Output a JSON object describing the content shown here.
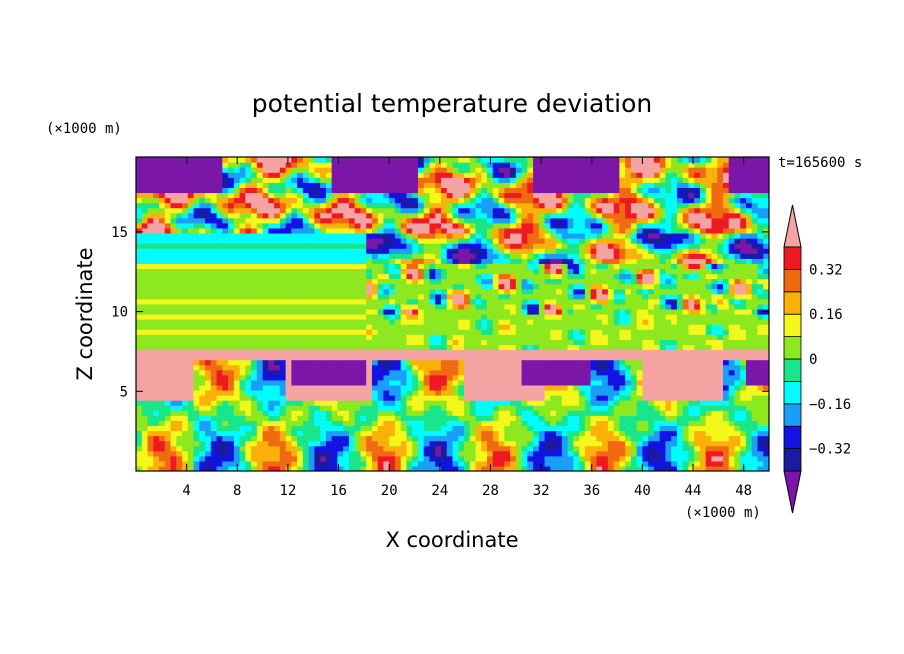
{
  "chart_data": {
    "type": "heatmap",
    "title": "potential temperature deviation",
    "time_label": "t=165600 s",
    "xlabel": "X coordinate",
    "ylabel": "Z coordinate",
    "x_unit": "(×1000 m)",
    "y_unit": "(×1000 m)",
    "xlim": [
      0,
      50
    ],
    "ylim": [
      0,
      19.7
    ],
    "x_ticks": [
      4,
      8,
      12,
      16,
      20,
      24,
      28,
      32,
      36,
      40,
      44,
      48
    ],
    "y_ticks": [
      5,
      10,
      15
    ],
    "colorbar": {
      "tick_labels": [
        "0.32",
        "0.16",
        "0",
        "−0.16",
        "−0.32"
      ],
      "levels": [
        -0.4,
        -0.32,
        -0.24,
        -0.16,
        -0.08,
        0,
        0.08,
        0.16,
        0.24,
        0.32,
        0.4
      ],
      "colors": [
        "#7b17a8",
        "#1b1b9f",
        "#1212e3",
        "#1a9ef8",
        "#00fcff",
        "#19e58a",
        "#8ee81f",
        "#f4f71c",
        "#fbb00a",
        "#f06a11",
        "#ef1922",
        "#f5a3a3"
      ],
      "extend": "both"
    },
    "field_bands": [
      {
        "z_range": [
          0,
          7
        ],
        "description_value": "mixed -0.4 to 0.4"
      },
      {
        "z_range": [
          7,
          7.6
        ],
        "value": 0.4
      },
      {
        "z_range": [
          7.6,
          13
        ],
        "value": 0.05
      },
      {
        "z_range": [
          13,
          15
        ],
        "value": -0.1
      },
      {
        "z_range": [
          15,
          19.7
        ],
        "description_value": "mixed -0.4 to 0.4"
      }
    ]
  }
}
